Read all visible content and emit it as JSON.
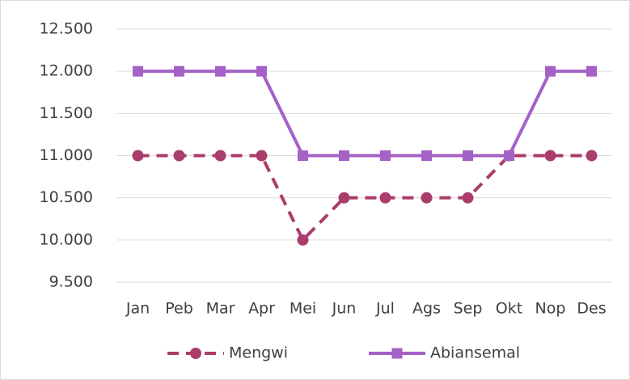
{
  "chart_data": {
    "type": "line",
    "categories": [
      "Jan",
      "Peb",
      "Mar",
      "Apr",
      "Mei",
      "Jun",
      "Jul",
      "Ags",
      "Sep",
      "Okt",
      "Nop",
      "Des"
    ],
    "series": [
      {
        "name": "Mengwi",
        "color": "#aa3d6c",
        "dashed": true,
        "marker": "circle",
        "values": [
          11000,
          11000,
          11000,
          11000,
          10000,
          10500,
          10500,
          10500,
          10500,
          11000,
          11000,
          11000
        ]
      },
      {
        "name": "Abiansemal",
        "color": "#a461c6",
        "dashed": false,
        "marker": "square",
        "values": [
          12000,
          12000,
          12000,
          12000,
          11000,
          11000,
          11000,
          11000,
          11000,
          11000,
          12000,
          12000
        ]
      }
    ],
    "ylim": [
      9500,
      12500
    ],
    "yticks": [
      {
        "value": 9500,
        "label": "9.500"
      },
      {
        "value": 10000,
        "label": "10.000"
      },
      {
        "value": 10500,
        "label": "10.500"
      },
      {
        "value": 11000,
        "label": "11.000"
      },
      {
        "value": 11500,
        "label": "11.500"
      },
      {
        "value": 12000,
        "label": "12.000"
      },
      {
        "value": 12500,
        "label": "12.500"
      }
    ],
    "grid": true,
    "legend": "bottom"
  }
}
